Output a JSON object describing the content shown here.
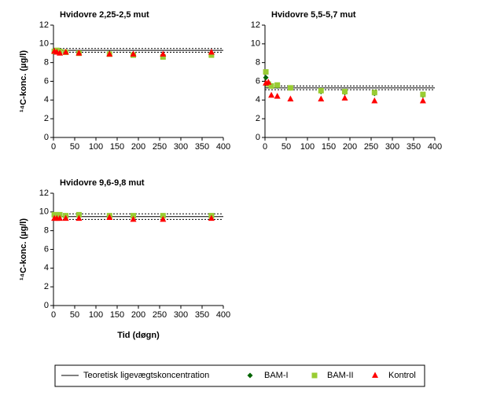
{
  "chart_data": [
    {
      "type": "scatter",
      "title": "Hvidovre 2,25-2,5 mut",
      "ylabel": "¹⁴C-konc. (µg/l)",
      "x": [
        2,
        8,
        15,
        29,
        60,
        132,
        188,
        258,
        372
      ],
      "xlim": [
        0,
        400
      ],
      "xticks": [
        0,
        50,
        100,
        150,
        200,
        250,
        300,
        350,
        400
      ],
      "ylim": [
        0,
        12
      ],
      "yticks": [
        0,
        2,
        4,
        6,
        8,
        10,
        12
      ],
      "reference": {
        "name": "Teoretisk ligevægtskoncentration",
        "value": 9.3,
        "bounds": [
          9.1,
          9.5
        ],
        "color": "#000000"
      },
      "series": [
        {
          "name": "BAM-I",
          "color": "#006400",
          "marker": "diamond",
          "values": [
            9.2,
            9.2,
            9.1,
            9.1,
            9.0,
            9.0,
            8.9,
            8.8,
            8.9
          ]
        },
        {
          "name": "BAM-II",
          "color": "#99cc33",
          "marker": "square",
          "values": [
            9.2,
            9.3,
            9.2,
            9.1,
            9.0,
            8.9,
            8.8,
            8.6,
            8.8
          ]
        },
        {
          "name": "Kontrol",
          "color": "#ff0000",
          "marker": "triangle",
          "values": [
            9.2,
            9.1,
            9.0,
            9.1,
            9.0,
            8.9,
            8.9,
            8.9,
            9.1
          ]
        }
      ]
    },
    {
      "type": "scatter",
      "title": "Hvidovre 5,5-5,7 mut",
      "x": [
        2,
        8,
        15,
        29,
        60,
        132,
        188,
        258,
        372
      ],
      "xlim": [
        0,
        400
      ],
      "xticks": [
        0,
        50,
        100,
        150,
        200,
        250,
        300,
        350,
        400
      ],
      "ylim": [
        0,
        12
      ],
      "yticks": [
        0,
        2,
        4,
        6,
        8,
        10,
        12
      ],
      "reference": {
        "value": 5.3,
        "bounds": [
          5.1,
          5.5
        ],
        "color": "#000000"
      },
      "series": [
        {
          "color": "#006400",
          "marker": "diamond",
          "values": [
            6.4,
            5.8,
            5.5,
            5.5,
            5.3,
            4.9,
            4.8,
            4.7,
            4.5
          ]
        },
        {
          "color": "#99cc33",
          "marker": "square",
          "values": [
            7.0,
            5.7,
            5.5,
            5.6,
            5.3,
            5.0,
            4.9,
            4.8,
            4.6
          ]
        },
        {
          "color": "#ff0000",
          "marker": "triangle",
          "values": [
            5.8,
            5.9,
            4.5,
            4.4,
            4.1,
            4.1,
            4.2,
            3.9,
            3.9
          ]
        }
      ]
    },
    {
      "type": "scatter",
      "title": "Hvidovre 9,6-9,8 mut",
      "ylabel": "¹⁴C-konc. (µg/l)",
      "xlabel": "Tid (døgn)",
      "x": [
        2,
        8,
        15,
        29,
        60,
        132,
        188,
        258,
        372
      ],
      "xlim": [
        0,
        400
      ],
      "xticks": [
        0,
        50,
        100,
        150,
        200,
        250,
        300,
        350,
        400
      ],
      "ylim": [
        0,
        12
      ],
      "yticks": [
        0,
        2,
        4,
        6,
        8,
        10,
        12
      ],
      "reference": {
        "value": 9.5,
        "bounds": [
          9.2,
          9.8
        ],
        "color": "#000000"
      },
      "series": [
        {
          "color": "#006400",
          "marker": "diamond",
          "values": [
            9.6,
            9.6,
            9.6,
            9.6,
            9.6,
            9.6,
            9.6,
            9.6,
            9.6
          ]
        },
        {
          "color": "#99cc33",
          "marker": "square",
          "values": [
            9.7,
            9.7,
            9.7,
            9.6,
            9.7,
            9.6,
            9.6,
            9.6,
            9.6
          ]
        },
        {
          "color": "#ff0000",
          "marker": "triangle",
          "values": [
            9.3,
            9.3,
            9.3,
            9.3,
            9.3,
            9.4,
            9.2,
            9.2,
            9.3
          ]
        }
      ]
    }
  ]
}
